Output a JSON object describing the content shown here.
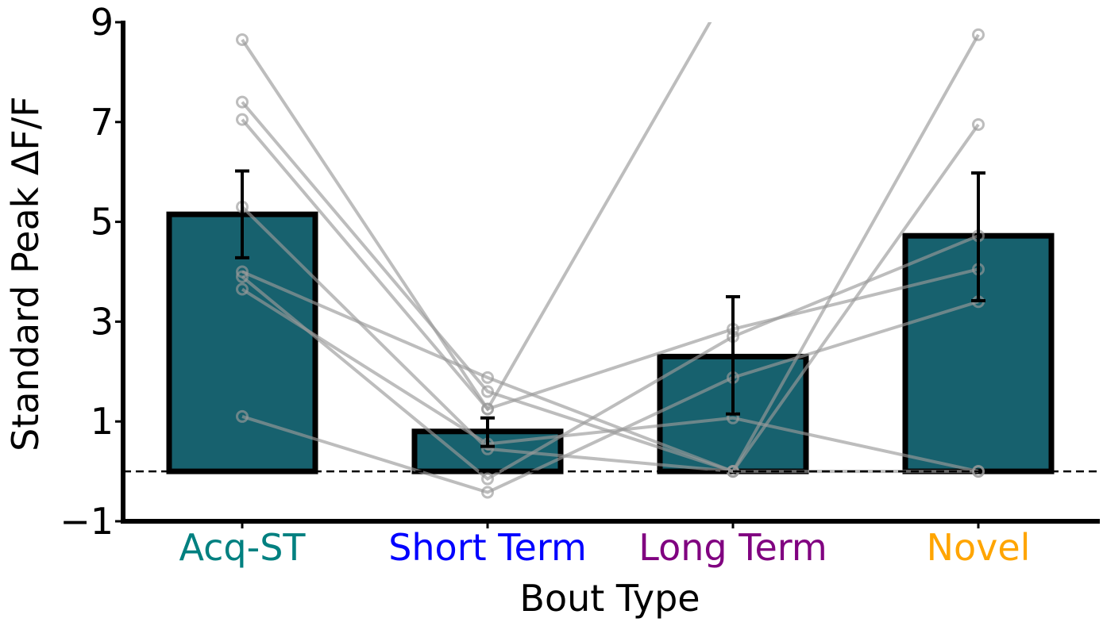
{
  "chart_data": {
    "type": "bar",
    "title": "",
    "xlabel": "Bout Type",
    "ylabel": "Standard Peak ΔF/F",
    "ylim": [
      -1,
      9
    ],
    "yticks": [
      -1,
      1,
      3,
      5,
      7,
      9
    ],
    "yticks_labels": [
      "−1",
      "1",
      "3",
      "5",
      "7",
      "9"
    ],
    "categories": [
      "Acq-ST",
      "Short Term",
      "Long Term",
      "Novel"
    ],
    "category_colors": [
      "#008080",
      "#0000ff",
      "#800080",
      "#ffa500"
    ],
    "values": [
      5.15,
      0.8,
      2.3,
      4.72
    ],
    "error_low": [
      4.28,
      0.5,
      1.15,
      3.42
    ],
    "error_high": [
      6.02,
      1.07,
      3.5,
      5.98
    ],
    "bar_color": "#17616e",
    "bar_edge_color": "#000000",
    "reference_line": 0,
    "individual_series": [
      {
        "values": [
          8.65,
          1.25,
          2.85,
          4.05
        ]
      },
      {
        "values": [
          7.4,
          1.6,
          0.0,
          8.75
        ]
      },
      {
        "values": [
          7.05,
          1.25,
          9.8,
          null
        ]
      },
      {
        "values": [
          5.3,
          0.45,
          0.0,
          6.95
        ]
      },
      {
        "values": [
          4.0,
          1.88,
          0.0,
          0.0
        ]
      },
      {
        "values": [
          3.9,
          -0.15,
          2.7,
          4.72
        ]
      },
      {
        "values": [
          3.65,
          0.55,
          1.07,
          0.0
        ]
      },
      {
        "values": [
          1.1,
          -0.42,
          1.88,
          3.4
        ]
      }
    ]
  }
}
